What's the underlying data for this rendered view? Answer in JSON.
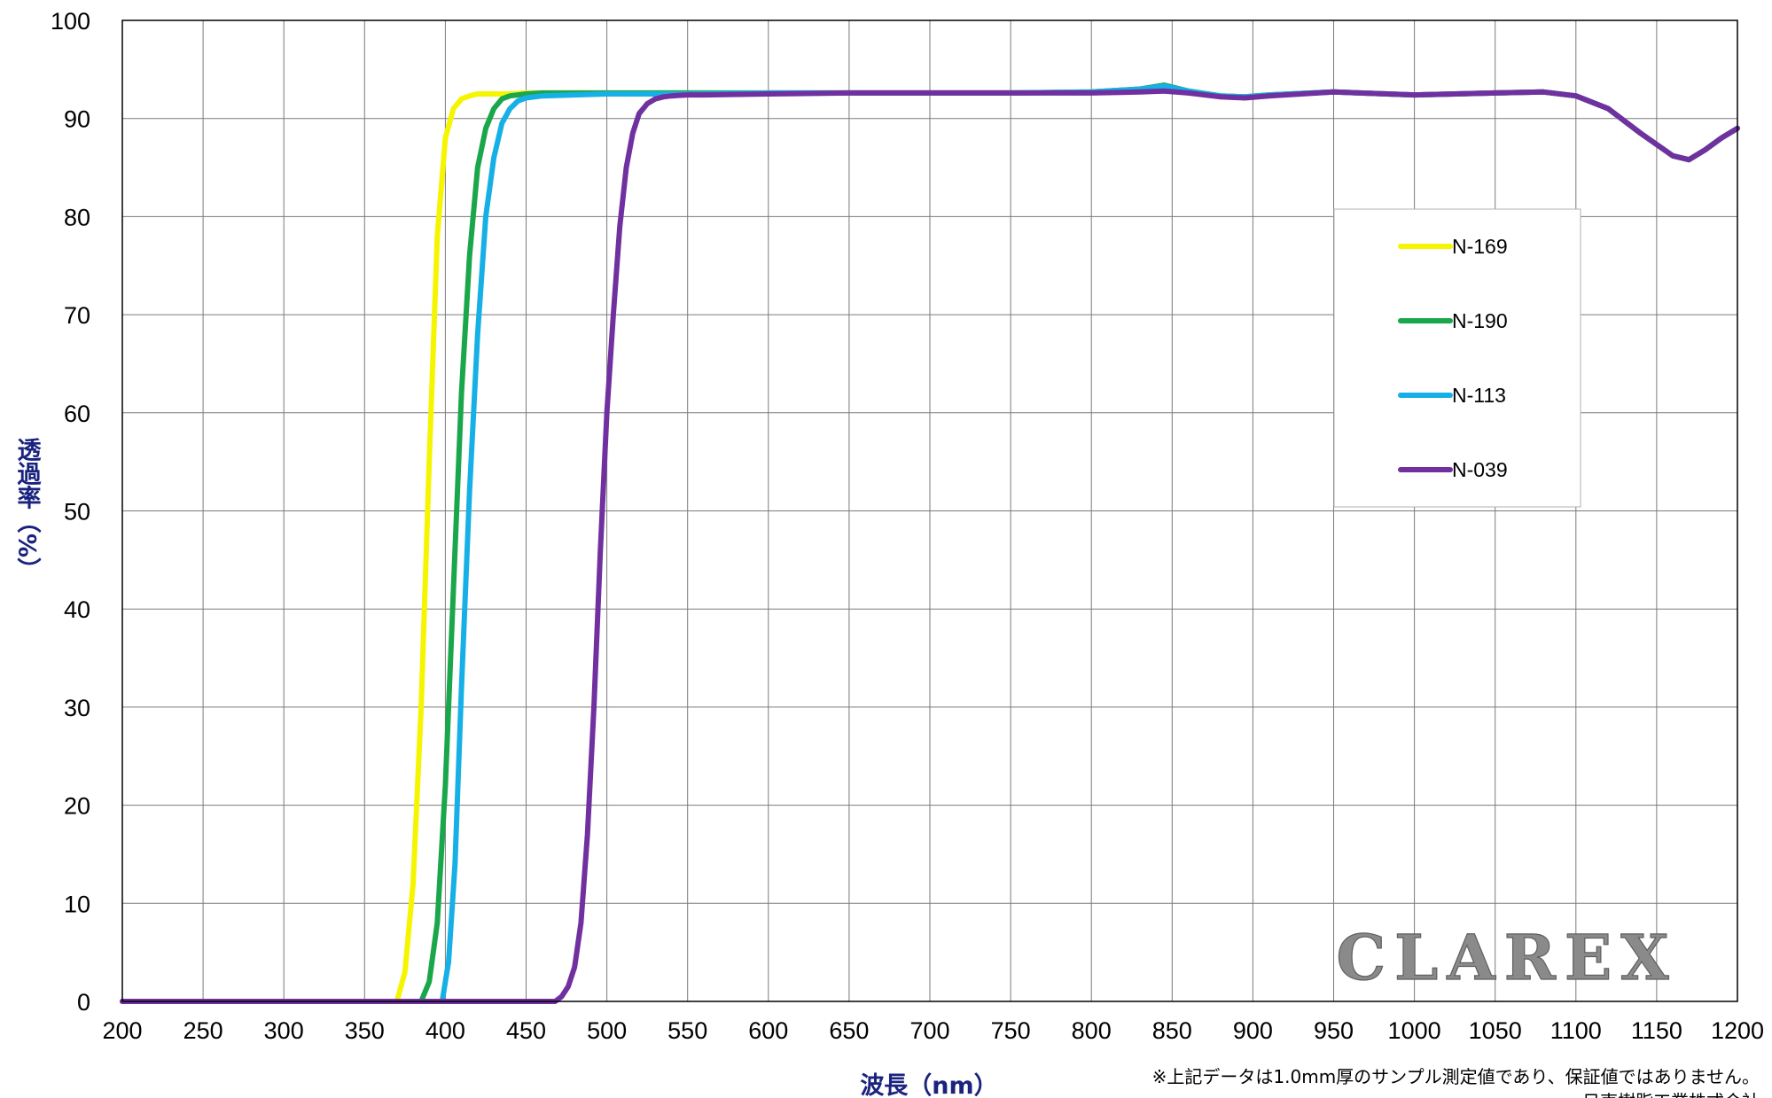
{
  "chart_data": {
    "type": "line",
    "title": "",
    "xlabel": "波長（nm）",
    "ylabel": "透過率（%）",
    "xlim": [
      200,
      1200
    ],
    "ylim": [
      0,
      100
    ],
    "x_ticks": [
      "200",
      "250",
      "300",
      "350",
      "400",
      "450",
      "500",
      "550",
      "600",
      "650",
      "700",
      "750",
      "800",
      "850",
      "900",
      "950",
      "1000",
      "1050",
      "1100",
      "1150",
      "1200"
    ],
    "y_ticks": [
      "0",
      "10",
      "20",
      "30",
      "40",
      "50",
      "60",
      "70",
      "80",
      "90",
      "100"
    ],
    "grid": true,
    "legend_position": "upper-right",
    "series": [
      {
        "name": "N-169",
        "color": "#f5f500",
        "x": [
          200,
          370,
          375,
          380,
          385,
          390,
          395,
          400,
          405,
          410,
          415,
          420,
          430,
          440,
          450,
          500,
          550,
          600,
          650,
          700,
          750,
          800,
          830,
          845,
          860,
          880,
          895,
          910,
          950,
          1000,
          1050,
          1080,
          1100,
          1120,
          1140,
          1160,
          1170,
          1180,
          1190,
          1200
        ],
        "y": [
          0,
          0,
          3,
          12,
          30,
          55,
          78,
          88,
          91,
          92.0,
          92.3,
          92.5,
          92.5,
          92.5,
          92.6,
          92.6,
          92.6,
          92.6,
          92.6,
          92.6,
          92.6,
          92.7,
          93.0,
          93.2,
          92.8,
          92.3,
          92.2,
          92.4,
          92.7,
          92.4,
          92.6,
          92.7,
          92.3,
          91.0,
          88.5,
          86.2,
          85.8,
          86.8,
          88.0,
          89.0
        ]
      },
      {
        "name": "N-190",
        "color": "#1aa64a",
        "x": [
          200,
          385,
          390,
          395,
          400,
          405,
          410,
          415,
          420,
          425,
          430,
          435,
          440,
          450,
          460,
          500,
          550,
          600,
          650,
          700,
          750,
          800,
          830,
          845,
          860,
          880,
          895,
          910,
          950,
          1000,
          1050,
          1080,
          1100,
          1120,
          1140,
          1160,
          1170,
          1180,
          1190,
          1200
        ],
        "y": [
          0,
          0,
          2,
          8,
          22,
          42,
          62,
          76,
          85,
          89,
          91,
          92.0,
          92.3,
          92.5,
          92.6,
          92.6,
          92.6,
          92.6,
          92.6,
          92.6,
          92.6,
          92.7,
          93.0,
          93.4,
          92.8,
          92.3,
          92.2,
          92.4,
          92.7,
          92.4,
          92.6,
          92.7,
          92.3,
          91.0,
          88.5,
          86.2,
          85.8,
          86.8,
          88.0,
          89.0
        ]
      },
      {
        "name": "N-113",
        "color": "#16b0e6",
        "x": [
          200,
          398,
          402,
          406,
          410,
          415,
          420,
          425,
          430,
          435,
          440,
          445,
          450,
          460,
          480,
          500,
          550,
          600,
          650,
          700,
          750,
          800,
          830,
          845,
          860,
          880,
          895,
          910,
          950,
          1000,
          1050,
          1080,
          1100,
          1120,
          1140,
          1160,
          1170,
          1180,
          1190,
          1200
        ],
        "y": [
          0,
          0,
          4,
          14,
          32,
          52,
          68,
          80,
          86,
          89.5,
          91,
          91.8,
          92.1,
          92.3,
          92.4,
          92.5,
          92.5,
          92.6,
          92.6,
          92.6,
          92.6,
          92.7,
          93.0,
          93.3,
          92.8,
          92.3,
          92.2,
          92.4,
          92.7,
          92.4,
          92.6,
          92.7,
          92.3,
          91.0,
          88.5,
          86.2,
          85.8,
          86.8,
          88.0,
          89.0
        ]
      },
      {
        "name": "N-039",
        "color": "#7030a0",
        "x": [
          200,
          468,
          472,
          476,
          480,
          484,
          488,
          492,
          496,
          500,
          504,
          508,
          512,
          516,
          520,
          525,
          530,
          535,
          540,
          550,
          560,
          600,
          650,
          700,
          750,
          800,
          830,
          845,
          860,
          880,
          895,
          910,
          950,
          1000,
          1050,
          1080,
          1100,
          1120,
          1140,
          1160,
          1170,
          1180,
          1190,
          1200
        ],
        "y": [
          0,
          0,
          0.5,
          1.5,
          3.5,
          8,
          17,
          30,
          46,
          60,
          70,
          79,
          85,
          88.5,
          90.5,
          91.5,
          92.0,
          92.2,
          92.3,
          92.4,
          92.4,
          92.5,
          92.6,
          92.6,
          92.6,
          92.6,
          92.7,
          92.8,
          92.6,
          92.2,
          92.1,
          92.3,
          92.7,
          92.4,
          92.6,
          92.7,
          92.3,
          91.0,
          88.5,
          86.2,
          85.8,
          86.8,
          88.0,
          89.0
        ]
      }
    ]
  },
  "brand": {
    "logo_text": "CLAREX"
  },
  "footer": {
    "note": "※上記データは1.0mm厚のサンプル測定値であり、保証値ではありません。",
    "company": "日東樹脂工業株式会社"
  }
}
